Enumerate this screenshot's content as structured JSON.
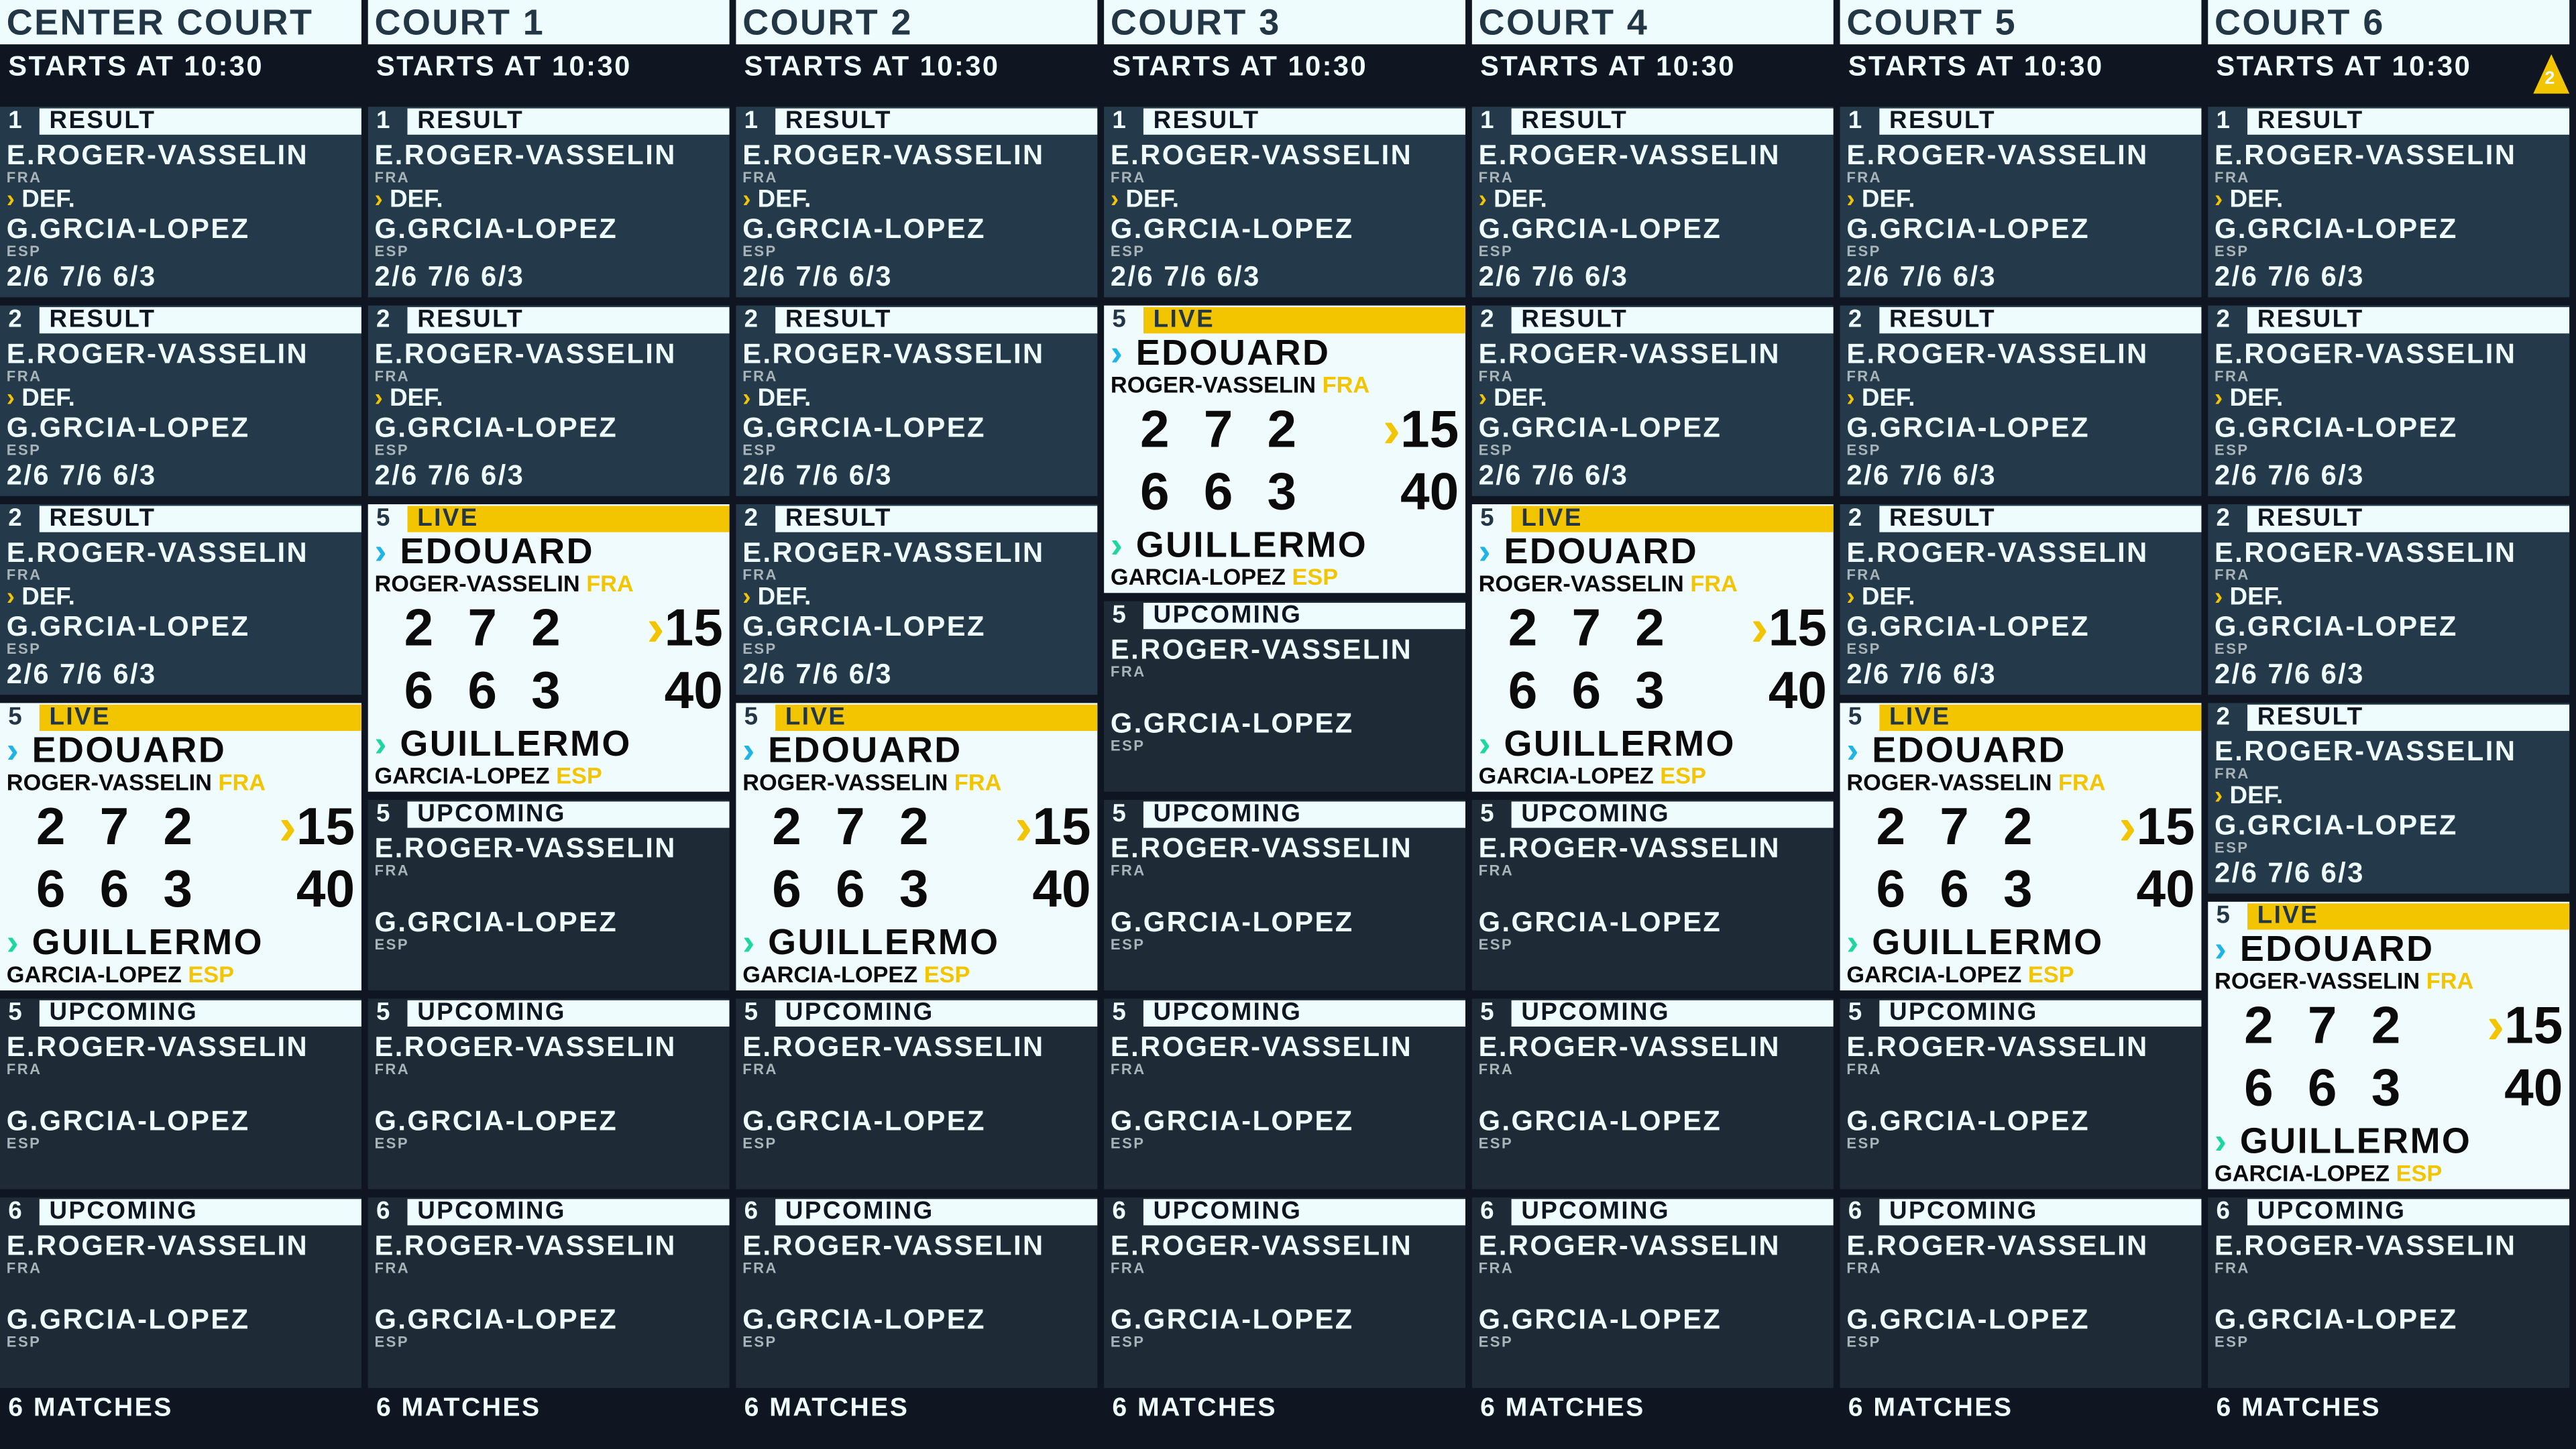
{
  "colors": {
    "background": "#0f1622",
    "header": "#eefcfd",
    "accent": "#f2c500",
    "result_card": "#243a4a",
    "upcoming_card": "#1e2b36",
    "live_card": "#f0fbfd",
    "player1_chevron": "#1eb4e6",
    "player2_chevron": "#1ed7a0"
  },
  "templates": {
    "result": {
      "label": "RESULT",
      "p1": "E.ROGER-VASSELIN",
      "c1": "FRA",
      "def": "DEF.",
      "p2": "G.GRCIA-LOPEZ",
      "c2": "ESP",
      "score": "2/6 7/6 6/3"
    },
    "upcoming": {
      "label": "UPCOMING",
      "p1": "E.ROGER-VASSELIN",
      "c1": "FRA",
      "p2": "G.GRCIA-LOPEZ",
      "c2": "ESP"
    },
    "live": {
      "label": "LIVE",
      "p1_first": "EDOUARD",
      "p1_last": "ROGER-VASSELIN",
      "c1": "FRA",
      "p2_first": "GUILLERMO",
      "p2_last": "GARCIA-LOPEZ",
      "c2": "ESP",
      "sets1": "2 7 2",
      "sets2": "6 6 3",
      "point1": "15",
      "point2": "40",
      "serving": "player1"
    }
  },
  "courts": [
    {
      "name": "CENTER COURT",
      "starts": "STARTS AT 10:30",
      "footer": "6 MATCHES",
      "matches": [
        {
          "n": "1",
          "s": "result"
        },
        {
          "n": "2",
          "s": "result"
        },
        {
          "n": "2",
          "s": "result"
        },
        {
          "n": "5",
          "s": "live"
        },
        {
          "n": "5",
          "s": "upcoming"
        },
        {
          "n": "6",
          "s": "upcoming"
        }
      ]
    },
    {
      "name": "COURT 1",
      "starts": "STARTS AT 10:30",
      "footer": "6 MATCHES",
      "matches": [
        {
          "n": "1",
          "s": "result"
        },
        {
          "n": "2",
          "s": "result"
        },
        {
          "n": "5",
          "s": "live"
        },
        {
          "n": "5",
          "s": "upcoming"
        },
        {
          "n": "5",
          "s": "upcoming"
        },
        {
          "n": "6",
          "s": "upcoming"
        }
      ]
    },
    {
      "name": "COURT 2",
      "starts": "STARTS AT 10:30",
      "footer": "6 MATCHES",
      "matches": [
        {
          "n": "1",
          "s": "result"
        },
        {
          "n": "2",
          "s": "result"
        },
        {
          "n": "2",
          "s": "result"
        },
        {
          "n": "5",
          "s": "live"
        },
        {
          "n": "5",
          "s": "upcoming"
        },
        {
          "n": "6",
          "s": "upcoming"
        }
      ]
    },
    {
      "name": "COURT 3",
      "starts": "STARTS AT 10:30",
      "footer": "6 MATCHES",
      "matches": [
        {
          "n": "1",
          "s": "result"
        },
        {
          "n": "5",
          "s": "live"
        },
        {
          "n": "5",
          "s": "upcoming"
        },
        {
          "n": "5",
          "s": "upcoming"
        },
        {
          "n": "5",
          "s": "upcoming"
        },
        {
          "n": "6",
          "s": "upcoming"
        }
      ]
    },
    {
      "name": "COURT 4",
      "starts": "STARTS AT 10:30",
      "footer": "6 MATCHES",
      "matches": [
        {
          "n": "1",
          "s": "result"
        },
        {
          "n": "2",
          "s": "result"
        },
        {
          "n": "5",
          "s": "live"
        },
        {
          "n": "5",
          "s": "upcoming"
        },
        {
          "n": "5",
          "s": "upcoming"
        },
        {
          "n": "6",
          "s": "upcoming"
        }
      ]
    },
    {
      "name": "COURT 5",
      "starts": "STARTS AT 10:30",
      "footer": "6 MATCHES",
      "matches": [
        {
          "n": "1",
          "s": "result"
        },
        {
          "n": "2",
          "s": "result"
        },
        {
          "n": "2",
          "s": "result"
        },
        {
          "n": "5",
          "s": "live"
        },
        {
          "n": "5",
          "s": "upcoming"
        },
        {
          "n": "6",
          "s": "upcoming"
        }
      ]
    },
    {
      "name": "COURT 6",
      "starts": "STARTS AT 10:30",
      "footer": "6 MATCHES",
      "warning": "2",
      "matches": [
        {
          "n": "1",
          "s": "result"
        },
        {
          "n": "2",
          "s": "result"
        },
        {
          "n": "2",
          "s": "result"
        },
        {
          "n": "2",
          "s": "result"
        },
        {
          "n": "5",
          "s": "live"
        },
        {
          "n": "6",
          "s": "upcoming"
        }
      ]
    }
  ]
}
